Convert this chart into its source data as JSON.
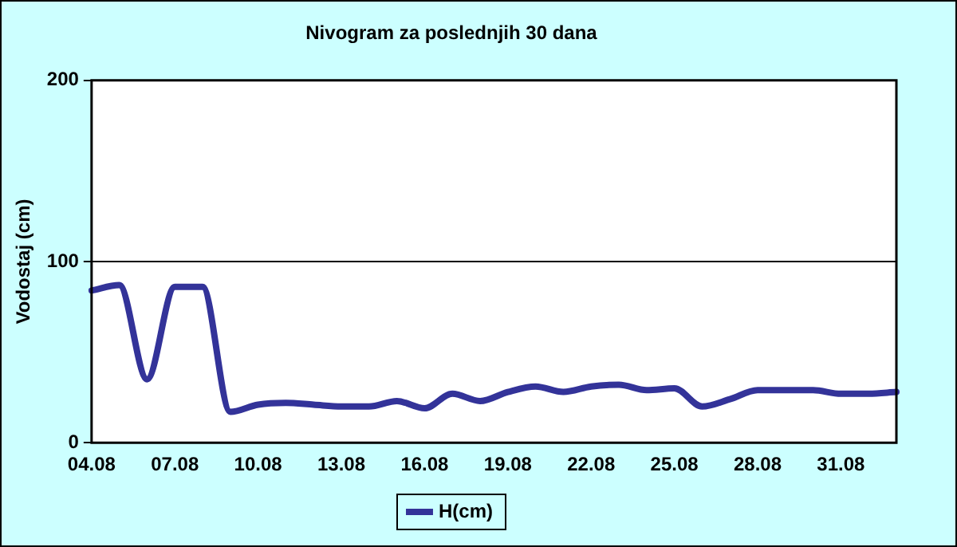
{
  "chart_data": {
    "type": "line",
    "title": "Nivogram za poslednjih 30 dana",
    "ylabel": "Vodostaj (cm)",
    "categories": [
      "04.08",
      null,
      null,
      "07.08",
      null,
      null,
      "10.08",
      null,
      null,
      "13.08",
      null,
      null,
      "16.08",
      null,
      null,
      "19.08",
      null,
      null,
      "22.08",
      null,
      null,
      "25.08",
      null,
      null,
      "28.08",
      null,
      null,
      "31.08",
      null,
      null
    ],
    "series": [
      {
        "name": "H(cm)",
        "color": "#333399",
        "values": [
          84,
          87,
          35,
          86,
          86,
          17,
          21,
          22,
          21,
          20,
          20,
          23,
          19,
          27,
          23,
          28,
          31,
          28,
          31,
          32,
          29,
          30,
          20,
          24,
          29,
          29,
          29,
          27,
          27,
          28
        ]
      }
    ],
    "ylim": [
      0,
      200
    ],
    "yticks": [
      0,
      100,
      200
    ],
    "grid": "y",
    "legend": "bottom",
    "marker": "none",
    "line_style": "solid"
  }
}
